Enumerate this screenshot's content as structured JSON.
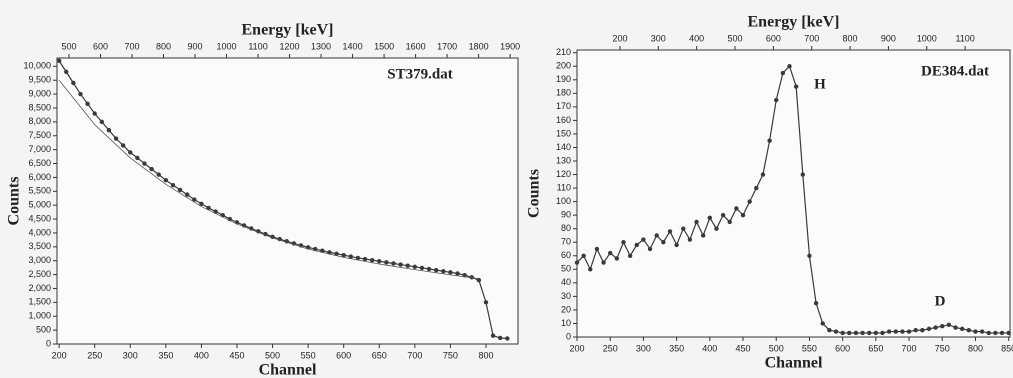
{
  "chart_data": [
    {
      "type": "line",
      "xlabel": "Channel",
      "ylabel": "Counts",
      "x2label": "Energy [keV]",
      "xlim": [
        197,
        845
      ],
      "xticks": [
        200,
        250,
        300,
        350,
        400,
        450,
        500,
        550,
        600,
        650,
        700,
        750,
        800
      ],
      "x2lim": [
        462,
        1925
      ],
      "x2ticks": [
        500,
        600,
        700,
        800,
        900,
        1000,
        1100,
        1200,
        1300,
        1400,
        1500,
        1600,
        1700,
        1800,
        1900
      ],
      "ylim": [
        0,
        10300
      ],
      "yticks": [
        0,
        500,
        {
          "value": 1000,
          "label": "1,000"
        },
        {
          "value": 1500,
          "label": "1,500"
        },
        {
          "value": 2000,
          "label": "2,000"
        },
        {
          "value": 2500,
          "label": "2,500"
        },
        {
          "value": 3000,
          "label": "3,000"
        },
        {
          "value": 3500,
          "label": "3,500"
        },
        {
          "value": 4000,
          "label": "4,000"
        },
        {
          "value": 4500,
          "label": "4,500"
        },
        {
          "value": 5000,
          "label": "5,000"
        },
        {
          "value": 5500,
          "label": "5,500"
        },
        {
          "value": 6000,
          "label": "6,000"
        },
        {
          "value": 6500,
          "label": "6,500"
        },
        {
          "value": 7000,
          "label": "7,000"
        },
        {
          "value": 7500,
          "label": "7,500"
        },
        {
          "value": 8000,
          "label": "8,000"
        },
        {
          "value": 8500,
          "label": "8,500"
        },
        {
          "value": 9000,
          "label": "9,000"
        },
        {
          "value": 9500,
          "label": "9,500"
        },
        {
          "value": 10000,
          "label": "10,000"
        }
      ],
      "series": [
        {
          "name": "ST379.dat",
          "color": "#3a3a3a",
          "markers": true,
          "x": [
            200,
            210,
            220,
            230,
            240,
            250,
            260,
            270,
            280,
            290,
            300,
            310,
            320,
            330,
            340,
            350,
            360,
            370,
            380,
            390,
            400,
            410,
            420,
            430,
            440,
            450,
            460,
            470,
            480,
            490,
            500,
            510,
            520,
            530,
            540,
            550,
            560,
            570,
            580,
            590,
            600,
            610,
            620,
            630,
            640,
            650,
            660,
            670,
            680,
            690,
            700,
            710,
            720,
            730,
            740,
            750,
            760,
            770,
            780,
            790,
            800,
            810,
            820,
            830
          ],
          "values": [
            10200,
            9800,
            9400,
            9000,
            8650,
            8300,
            8000,
            7700,
            7400,
            7150,
            6900,
            6700,
            6500,
            6300,
            6100,
            5900,
            5720,
            5550,
            5380,
            5200,
            5050,
            4900,
            4770,
            4640,
            4500,
            4380,
            4270,
            4160,
            4060,
            3960,
            3860,
            3780,
            3700,
            3620,
            3550,
            3480,
            3420,
            3360,
            3300,
            3250,
            3200,
            3150,
            3100,
            3060,
            3020,
            2980,
            2940,
            2900,
            2860,
            2820,
            2780,
            2740,
            2700,
            2660,
            2620,
            2580,
            2540,
            2480,
            2400,
            2300,
            1500,
            300,
            220,
            200
          ]
        },
        {
          "color": "#555555",
          "markers": false,
          "x": [
            200,
            250,
            300,
            350,
            400,
            450,
            500,
            550,
            600,
            650,
            700,
            750,
            790
          ],
          "values": [
            9500,
            7900,
            6700,
            5750,
            4950,
            4320,
            3820,
            3420,
            3120,
            2880,
            2680,
            2490,
            2350
          ]
        }
      ]
    },
    {
      "type": "line",
      "xlabel": "Channel",
      "ylabel": "Counts",
      "x2label": "Energy [keV]",
      "xlim": [
        200,
        852
      ],
      "xticks": [
        200,
        250,
        300,
        350,
        400,
        450,
        500,
        550,
        600,
        650,
        700,
        750,
        800,
        850
      ],
      "x2lim": [
        88,
        1217
      ],
      "x2ticks": [
        200,
        300,
        400,
        500,
        600,
        700,
        800,
        900,
        1000,
        1100
      ],
      "ylim": [
        0,
        212
      ],
      "yticks": [
        0,
        10,
        20,
        30,
        40,
        50,
        60,
        70,
        80,
        90,
        100,
        110,
        120,
        130,
        140,
        150,
        160,
        170,
        180,
        190,
        200,
        210
      ],
      "annotations": [
        "H",
        "D"
      ],
      "series": [
        {
          "name": "DE384.dat",
          "color": "#3a3a3a",
          "markers": true,
          "x": [
            200,
            210,
            220,
            230,
            240,
            250,
            260,
            270,
            280,
            290,
            300,
            310,
            320,
            330,
            340,
            350,
            360,
            370,
            380,
            390,
            400,
            410,
            420,
            430,
            440,
            450,
            460,
            470,
            480,
            490,
            500,
            510,
            520,
            530,
            540,
            550,
            560,
            570,
            580,
            590,
            600,
            610,
            620,
            630,
            640,
            650,
            660,
            670,
            680,
            690,
            700,
            710,
            720,
            730,
            740,
            750,
            760,
            770,
            780,
            790,
            800,
            810,
            820,
            830,
            840,
            850
          ],
          "values": [
            55,
            60,
            50,
            65,
            55,
            62,
            58,
            70,
            60,
            68,
            72,
            65,
            75,
            70,
            78,
            68,
            80,
            72,
            85,
            75,
            88,
            80,
            90,
            85,
            95,
            90,
            100,
            110,
            120,
            145,
            175,
            195,
            200,
            185,
            120,
            60,
            25,
            10,
            5,
            4,
            3,
            3,
            3,
            3,
            3,
            3,
            3,
            4,
            4,
            4,
            4,
            5,
            5,
            6,
            7,
            8,
            9,
            7,
            6,
            5,
            4,
            4,
            3,
            3,
            3,
            3
          ]
        }
      ]
    }
  ]
}
